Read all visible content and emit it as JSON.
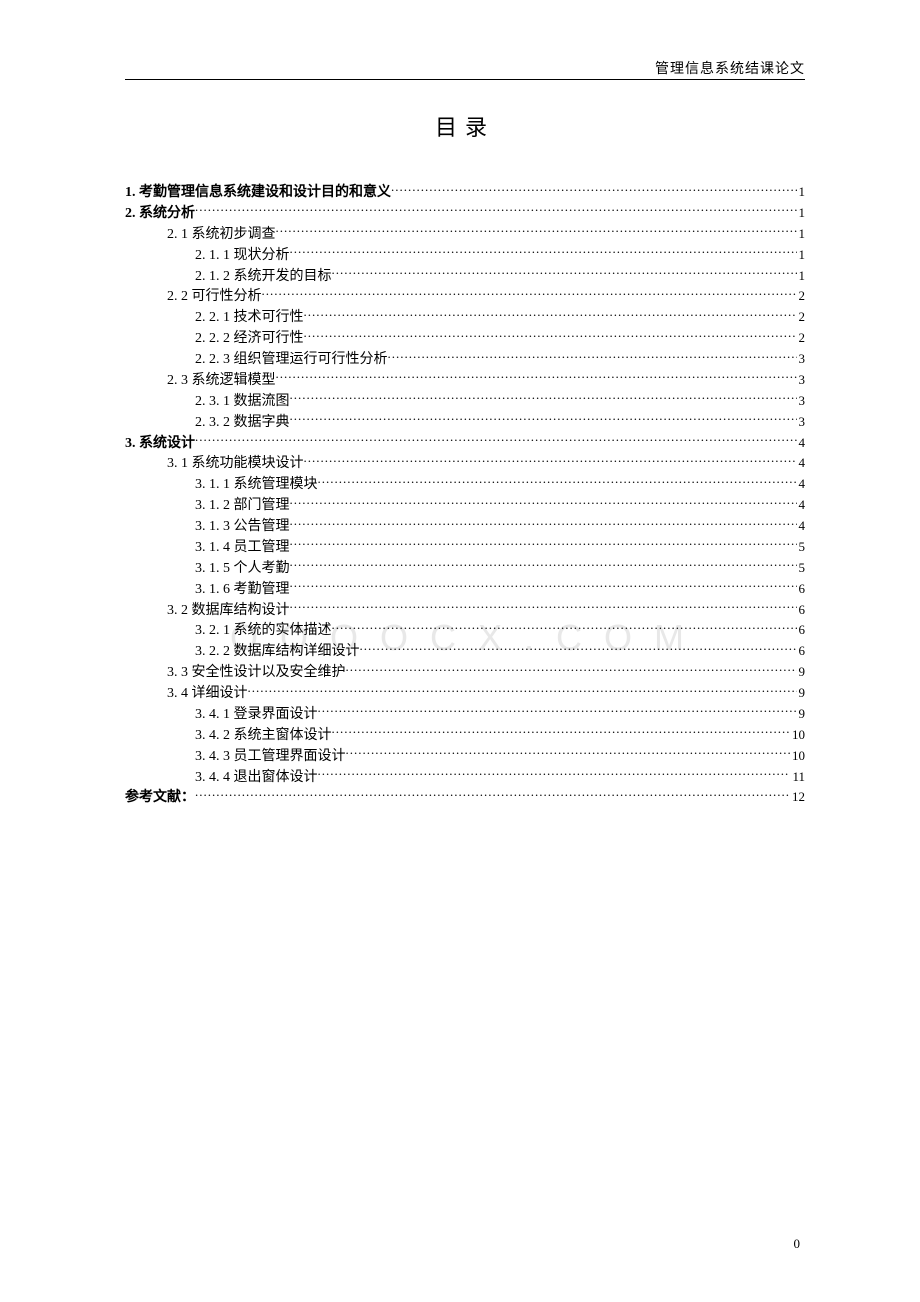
{
  "header": "管理信息系统结课论文",
  "title": "目录",
  "watermark": "O O O O C X . C O M",
  "page_number": "0",
  "toc": [
    {
      "label": "1. 考勤管理信息系统建设和设计目的和意义 ",
      "page": "1",
      "indent": 0,
      "bold": true
    },
    {
      "label": "2. 系统分析",
      "page": "1",
      "indent": 0,
      "bold": true
    },
    {
      "label": "2. 1 系统初步调查",
      "page": "1",
      "indent": 1,
      "bold": false
    },
    {
      "label": "2. 1. 1 现状分析",
      "page": "1",
      "indent": 2,
      "bold": false
    },
    {
      "label": "2. 1. 2 系统开发的目标",
      "page": "1",
      "indent": 2,
      "bold": false
    },
    {
      "label": "2. 2 可行性分析",
      "page": "2",
      "indent": 1,
      "bold": false
    },
    {
      "label": "2. 2. 1 技术可行性",
      "page": "2",
      "indent": 2,
      "bold": false
    },
    {
      "label": "2. 2. 2 经济可行性",
      "page": "2",
      "indent": 2,
      "bold": false
    },
    {
      "label": "2. 2. 3  组织管理运行可行性分析",
      "page": "3",
      "indent": 2,
      "bold": false
    },
    {
      "label": "2. 3 系统逻辑模型",
      "page": "3",
      "indent": 1,
      "bold": false
    },
    {
      "label": "2. 3. 1 数据流图",
      "page": "3",
      "indent": 2,
      "bold": false
    },
    {
      "label": "2. 3. 2 数据字典",
      "page": "3",
      "indent": 2,
      "bold": false
    },
    {
      "label": "3. 系统设计 ",
      "page": "4",
      "indent": 0,
      "bold": true
    },
    {
      "label": "3. 1 系统功能模块设计",
      "page": "4",
      "indent": 1,
      "bold": false
    },
    {
      "label": "3. 1. 1 系统管理模块",
      "page": "4",
      "indent": 2,
      "bold": false
    },
    {
      "label": "3. 1. 2 部门管理",
      "page": "4",
      "indent": 2,
      "bold": false
    },
    {
      "label": "3. 1. 3 公告管理",
      "page": "4",
      "indent": 2,
      "bold": false
    },
    {
      "label": "3. 1. 4 员工管理",
      "page": "5",
      "indent": 2,
      "bold": false
    },
    {
      "label": "3. 1. 5 个人考勤",
      "page": "5",
      "indent": 2,
      "bold": false
    },
    {
      "label": "3. 1. 6 考勤管理",
      "page": "6",
      "indent": 2,
      "bold": false
    },
    {
      "label": "3. 2 数据库结构设计",
      "page": "6",
      "indent": 1,
      "bold": false
    },
    {
      "label": "3. 2. 1 系统的实体描述",
      "page": "6",
      "indent": 2,
      "bold": false
    },
    {
      "label": "3. 2. 2  数据库结构详细设计",
      "page": "6",
      "indent": 2,
      "bold": false
    },
    {
      "label": "3. 3 安全性设计以及安全维护",
      "page": "9",
      "indent": 1,
      "bold": false
    },
    {
      "label": "3. 4 详细设计",
      "page": "9",
      "indent": 1,
      "bold": false
    },
    {
      "label": "3. 4. 1 登录界面设计",
      "page": "9",
      "indent": 2,
      "bold": false
    },
    {
      "label": "3. 4. 2  系统主窗体设计",
      "page": "10",
      "indent": 2,
      "bold": false
    },
    {
      "label": "3. 4. 3 员工管理界面设计",
      "page": "10",
      "indent": 2,
      "bold": false
    },
    {
      "label": "3. 4. 4 退出窗体设计",
      "page": "11",
      "indent": 2,
      "bold": false
    },
    {
      "label": "参考文献：  ",
      "page": "12",
      "indent": 0,
      "bold": true
    }
  ]
}
